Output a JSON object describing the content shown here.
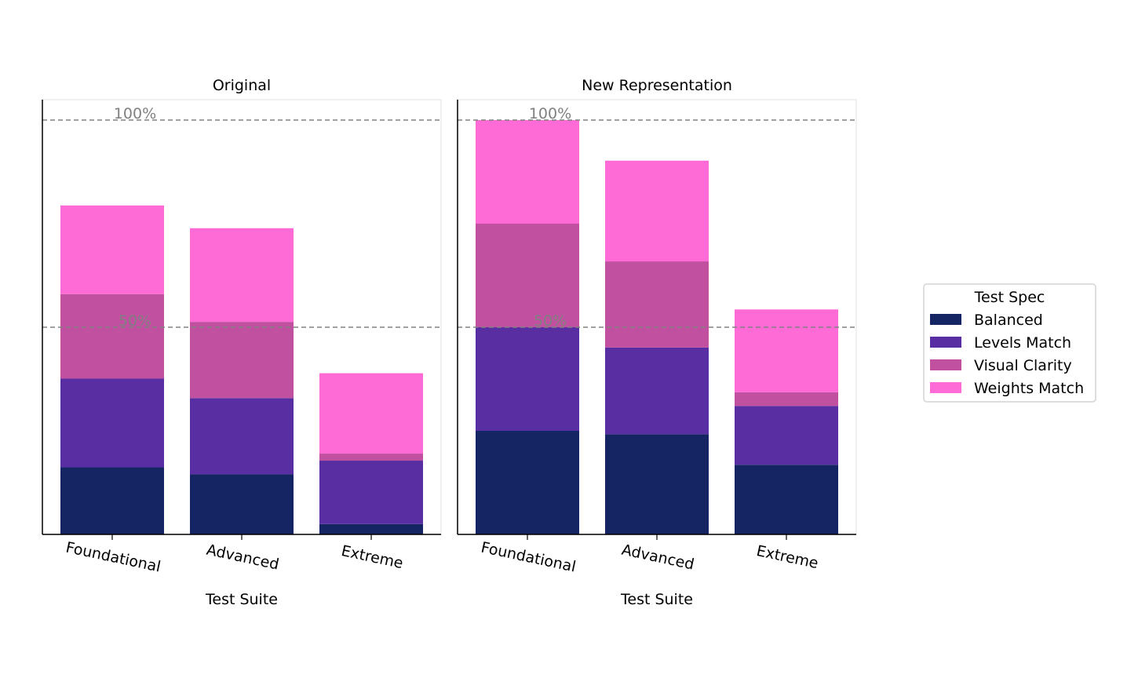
{
  "chart_data": {
    "type": "bar",
    "stacked": true,
    "categories": [
      "Foundational",
      "Advanced",
      "Extreme"
    ],
    "xlabel": "Test Suite",
    "reference_lines": [
      {
        "value": 1.0,
        "label": "100%"
      },
      {
        "value": 0.5,
        "label": "50%"
      }
    ],
    "legend": {
      "title": "Test Spec",
      "position": "right",
      "entries": [
        "Balanced",
        "Levels Match",
        "Visual Clarity",
        "Weights Match"
      ]
    },
    "colors": {
      "Balanced": "#152463",
      "Levels Match": "#582ea2",
      "Visual Clarity": "#c150a0",
      "Weights Match": "#ff6bd6"
    },
    "panels": [
      {
        "title": "Original",
        "series": [
          {
            "name": "Balanced",
            "values": [
              0.162,
              0.145,
              0.025
            ]
          },
          {
            "name": "Levels Match",
            "values": [
              0.214,
              0.184,
              0.153
            ]
          },
          {
            "name": "Visual Clarity",
            "values": [
              0.204,
              0.184,
              0.017
            ]
          },
          {
            "name": "Weights Match",
            "values": [
              0.214,
              0.226,
              0.194
            ]
          }
        ]
      },
      {
        "title": "New Representation",
        "series": [
          {
            "name": "Balanced",
            "values": [
              0.25,
              0.242,
              0.168
            ]
          },
          {
            "name": "Levels Match",
            "values": [
              0.25,
              0.209,
              0.142
            ]
          },
          {
            "name": "Visual Clarity",
            "values": [
              0.25,
              0.208,
              0.033
            ]
          },
          {
            "name": "Weights Match",
            "values": [
              0.25,
              0.243,
              0.2
            ]
          }
        ]
      }
    ]
  }
}
